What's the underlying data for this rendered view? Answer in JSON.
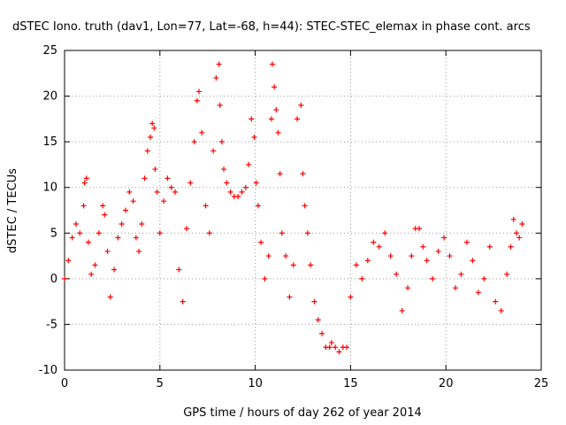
{
  "chart_data": {
    "type": "scatter",
    "title": "dSTEC Iono. truth (dav1, Lon=77, Lat=-68, h=44): STEC-STEC_elemax in phase cont. arcs",
    "xlabel": "GPS time / hours of day 262 of year 2014",
    "ylabel": "dSTEC  / TECUs",
    "xlim": [
      0,
      25
    ],
    "ylim": [
      -10,
      25
    ],
    "xticks": [
      0,
      5,
      10,
      15,
      20,
      25
    ],
    "yticks": [
      -10,
      -5,
      0,
      5,
      10,
      15,
      20,
      25
    ],
    "grid": true,
    "marker": "+",
    "color": "#ff0000",
    "series": [
      {
        "name": "dSTEC",
        "x": [
          0.0,
          0.2,
          0.4,
          0.6,
          0.8,
          1.0,
          1.05,
          1.15,
          1.25,
          1.4,
          1.6,
          1.8,
          2.0,
          2.1,
          2.25,
          2.4,
          2.6,
          2.8,
          3.0,
          3.2,
          3.4,
          3.6,
          3.75,
          3.9,
          4.05,
          4.2,
          4.35,
          4.5,
          4.6,
          4.7,
          4.75,
          4.85,
          5.0,
          5.2,
          5.4,
          5.6,
          5.8,
          6.0,
          6.2,
          6.4,
          6.6,
          6.8,
          6.95,
          7.05,
          7.2,
          7.4,
          7.6,
          7.8,
          7.95,
          8.1,
          8.15,
          8.25,
          8.35,
          8.5,
          8.7,
          8.9,
          9.1,
          9.3,
          9.5,
          9.65,
          9.8,
          9.95,
          10.05,
          10.15,
          10.3,
          10.5,
          10.7,
          10.85,
          10.9,
          11.0,
          11.1,
          11.2,
          11.3,
          11.4,
          11.6,
          11.8,
          12.0,
          12.2,
          12.4,
          12.5,
          12.6,
          12.75,
          12.9,
          13.1,
          13.3,
          13.5,
          13.7,
          13.9,
          14.0,
          14.2,
          14.4,
          14.6,
          14.8,
          15.0,
          15.3,
          15.6,
          15.9,
          16.2,
          16.5,
          16.8,
          17.1,
          17.4,
          17.7,
          18.0,
          18.2,
          18.4,
          18.6,
          18.8,
          19.0,
          19.3,
          19.6,
          19.9,
          20.2,
          20.5,
          20.8,
          21.1,
          21.4,
          21.7,
          22.0,
          22.3,
          22.6,
          22.9,
          23.2,
          23.4,
          23.55,
          23.7,
          23.85,
          24.0
        ],
        "y": [
          0.0,
          2.0,
          4.5,
          6.0,
          5.0,
          8.0,
          10.5,
          11.0,
          4.0,
          0.5,
          1.5,
          5.0,
          8.0,
          7.0,
          3.0,
          -2.0,
          1.0,
          4.5,
          6.0,
          7.5,
          9.5,
          8.5,
          4.5,
          3.0,
          6.0,
          11.0,
          14.0,
          15.5,
          17.0,
          16.5,
          12.0,
          9.5,
          5.0,
          8.5,
          11.0,
          10.0,
          9.5,
          1.0,
          -2.5,
          5.5,
          10.5,
          15.0,
          19.5,
          20.5,
          16.0,
          8.0,
          5.0,
          14.0,
          22.0,
          23.5,
          19.0,
          15.0,
          12.0,
          10.5,
          9.5,
          9.0,
          9.0,
          9.5,
          10.0,
          12.5,
          17.5,
          15.5,
          10.5,
          8.0,
          4.0,
          0.0,
          2.5,
          17.5,
          23.5,
          21.0,
          18.5,
          16.0,
          11.5,
          5.0,
          2.5,
          -2.0,
          1.5,
          17.5,
          19.0,
          11.5,
          8.0,
          5.0,
          1.5,
          -2.5,
          -4.5,
          -6.0,
          -7.5,
          -7.5,
          -7.0,
          -7.5,
          -8.0,
          -7.5,
          -7.5,
          -2.0,
          1.5,
          0.0,
          2.0,
          4.0,
          3.5,
          5.0,
          2.5,
          0.5,
          -3.5,
          -1.0,
          2.5,
          5.5,
          5.5,
          3.5,
          2.0,
          0.0,
          3.0,
          4.5,
          2.5,
          -1.0,
          0.5,
          4.0,
          2.0,
          -1.5,
          0.0,
          3.5,
          -2.5,
          -3.5,
          0.5,
          3.5,
          6.5,
          5.0,
          4.5,
          6.0
        ]
      }
    ]
  }
}
